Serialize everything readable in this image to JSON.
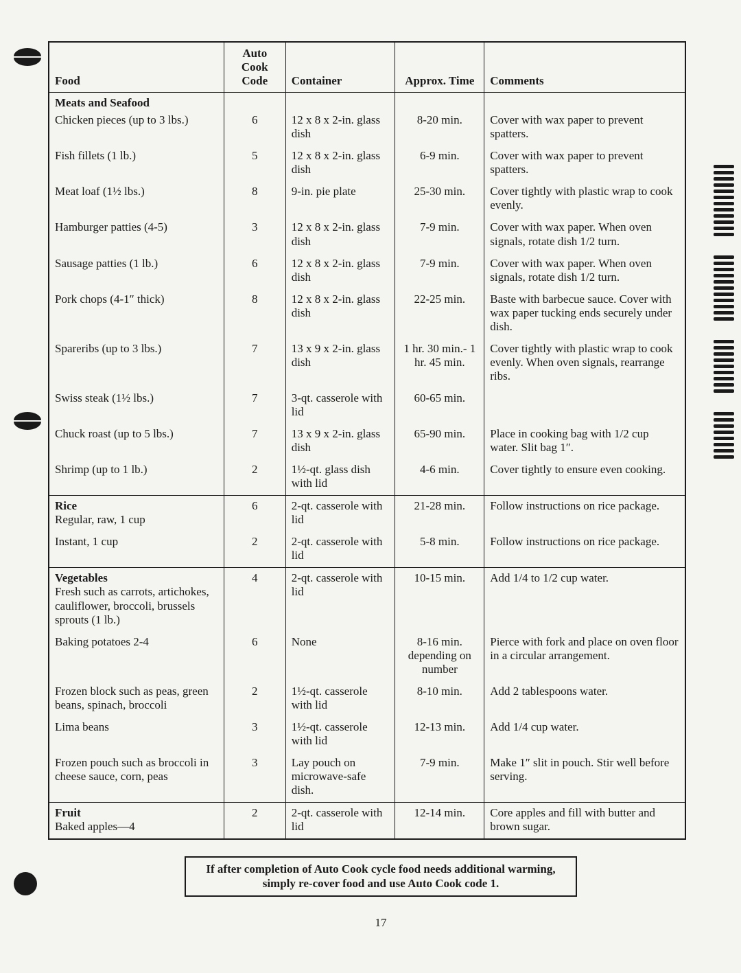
{
  "page_number": "17",
  "headers": {
    "food": "Food",
    "code": "Auto Cook Code",
    "container": "Container",
    "time": "Approx. Time",
    "comments": "Comments"
  },
  "sections": [
    {
      "title": "Meats and Seafood",
      "rows": [
        {
          "food": "Chicken pieces (up to 3 lbs.)",
          "code": "6",
          "container": "12 x 8 x 2-in. glass dish",
          "time": "8-20 min.",
          "comments": "Cover with wax paper to prevent spatters."
        },
        {
          "food": "Fish fillets (1 lb.)",
          "code": "5",
          "container": "12 x 8 x 2-in. glass dish",
          "time": "6-9 min.",
          "comments": "Cover with wax paper to prevent spatters."
        },
        {
          "food": "Meat loaf (1½ lbs.)",
          "code": "8",
          "container": "9-in. pie plate",
          "time": "25-30 min.",
          "comments": "Cover tightly with plastic wrap to cook evenly."
        },
        {
          "food": "Hamburger patties (4-5)",
          "code": "3",
          "container": "12 x 8 x 2-in. glass dish",
          "time": "7-9 min.",
          "comments": "Cover with wax paper. When oven signals, rotate dish 1/2 turn."
        },
        {
          "food": "Sausage patties (1 lb.)",
          "code": "6",
          "container": "12 x 8 x 2-in. glass dish",
          "time": "7-9 min.",
          "comments": "Cover with wax paper. When oven signals, rotate dish 1/2 turn."
        },
        {
          "food": "Pork chops (4-1″ thick)",
          "code": "8",
          "container": "12 x 8 x 2-in. glass dish",
          "time": "22-25 min.",
          "comments": "Baste with barbecue sauce. Cover with wax paper tucking ends securely under dish."
        },
        {
          "food": "Spareribs (up to 3 lbs.)",
          "code": "7",
          "container": "13 x 9 x 2-in. glass dish",
          "time": "1 hr. 30 min.- 1 hr. 45 min.",
          "comments": "Cover tightly with plastic wrap to cook evenly. When oven signals, rearrange ribs."
        },
        {
          "food": "Swiss steak (1½ lbs.)",
          "code": "7",
          "container": "3-qt. casserole with lid",
          "time": "60-65 min.",
          "comments": ""
        },
        {
          "food": "Chuck roast (up to 5 lbs.)",
          "code": "7",
          "container": "13 x 9 x 2-in. glass dish",
          "time": "65-90 min.",
          "comments": "Place in cooking bag with 1/2 cup water. Slit bag 1″."
        },
        {
          "food": "Shrimp (up to 1 lb.)",
          "code": "2",
          "container": "1½-qt. glass dish with lid",
          "time": "4-6 min.",
          "comments": "Cover tightly to ensure even cooking."
        }
      ]
    },
    {
      "title": "Rice",
      "rows": [
        {
          "food": "Regular, raw, 1 cup",
          "code": "6",
          "container": "2-qt. casserole with lid",
          "time": "21-28 min.",
          "comments": "Follow instructions on rice package."
        },
        {
          "food": "Instant, 1 cup",
          "code": "2",
          "container": "2-qt. casserole with lid",
          "time": "5-8 min.",
          "comments": "Follow instructions on rice package."
        }
      ]
    },
    {
      "title": "Vegetables",
      "rows": [
        {
          "food": "Fresh such as carrots, artichokes, cauliflower, broccoli, brussels sprouts (1 lb.)",
          "code": "4",
          "container": "2-qt. casserole with lid",
          "time": "10-15 min.",
          "comments": "Add 1/4 to 1/2 cup water."
        },
        {
          "food": "Baking potatoes 2-4",
          "code": "6",
          "container": "None",
          "time": "8-16 min. depending on number",
          "comments": "Pierce with fork and place on oven floor in a circular arrangement."
        },
        {
          "food": "Frozen block such as peas, green beans, spinach, broccoli",
          "code": "2",
          "container": "1½-qt. casserole with lid",
          "time": "8-10 min.",
          "comments": "Add 2 tablespoons water."
        },
        {
          "food": "Lima beans",
          "code": "3",
          "container": "1½-qt. casserole with lid",
          "time": "12-13 min.",
          "comments": "Add 1/4 cup water."
        },
        {
          "food": "Frozen pouch such as broccoli in cheese sauce, corn, peas",
          "code": "3",
          "container": "Lay pouch on microwave-safe dish.",
          "time": "7-9 min.",
          "comments": "Make 1″ slit in pouch. Stir well before serving."
        }
      ]
    },
    {
      "title": "Fruit",
      "rows": [
        {
          "food": "Baked apples—4",
          "code": "2",
          "container": "2-qt. casserole with lid",
          "time": "12-14 min.",
          "comments": "Core apples and fill with butter and brown sugar."
        }
      ]
    }
  ],
  "tip": "If after completion of Auto Cook cycle food needs additional warming, simply re-cover food and use Auto Cook code 1."
}
